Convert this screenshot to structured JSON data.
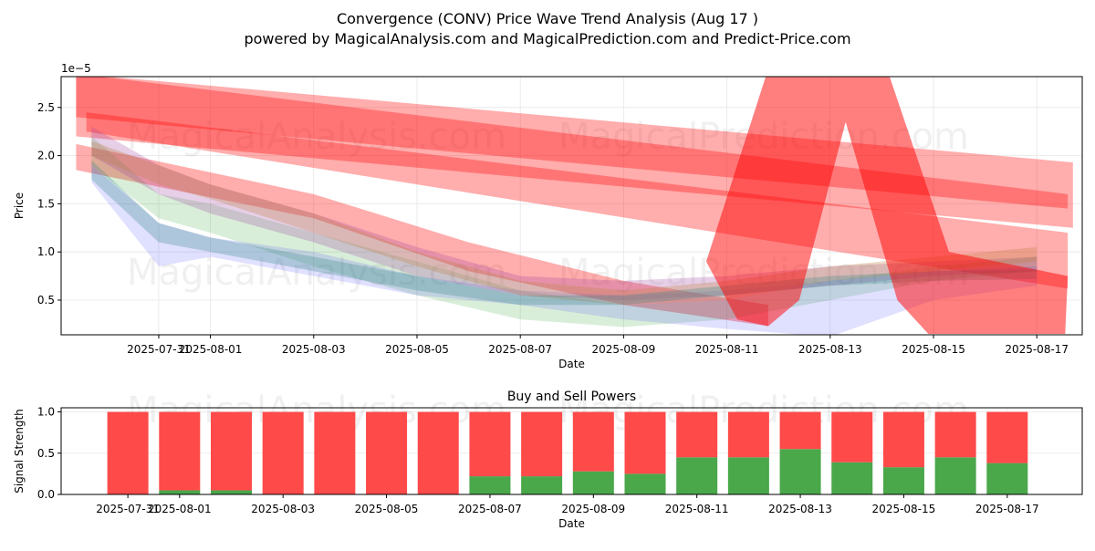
{
  "title_line1": "Convergence (CONV) Price Wave Trend Analysis (Aug 17 )",
  "title_line2": "powered by MagicalAnalysis.com and MagicalPrediction.com and Predict-Price.com",
  "watermarks": [
    "MagicalAnalysis.com",
    "MagicalPrediction.com"
  ],
  "chart_data": [
    {
      "type": "area",
      "title": "",
      "xlabel": "Date",
      "ylabel": "Price",
      "y_offset_label": "1e−5",
      "x_origin_date": "2025-07-31",
      "xlim_days": [
        -1.89,
        17.88
      ],
      "ylim": [
        0.14,
        2.82
      ],
      "yticks": [
        0.5,
        1.0,
        1.5,
        2.0,
        2.5
      ],
      "ytick_labels": [
        "0.5",
        "1.0",
        "1.5",
        "2.0",
        "2.5"
      ],
      "xticks_days": [
        0,
        1,
        3,
        5,
        7,
        9,
        11,
        13,
        15,
        17
      ],
      "xtick_labels": [
        "2025-07-31",
        "2025-08-01",
        "2025-08-03",
        "2025-08-05",
        "2025-08-07",
        "2025-08-09",
        "2025-08-11",
        "2025-08-13",
        "2025-08-15",
        "2025-08-17"
      ],
      "grid": true,
      "bands": [
        {
          "name": "red-band-1",
          "color": "#ff0000",
          "alpha": 0.32,
          "x": [
            -1.6,
            17.7
          ],
          "hi": [
            2.85,
            1.93
          ],
          "lo": [
            2.2,
            1.25
          ]
        },
        {
          "name": "red-band-2",
          "color": "#ff0000",
          "alpha": 0.32,
          "x": [
            -1.4,
            17.6
          ],
          "hi": [
            2.45,
            1.2
          ],
          "lo": [
            2.25,
            0.62
          ]
        },
        {
          "name": "red-band-3",
          "color": "#ff0000",
          "alpha": 0.32,
          "x": [
            -1.6,
            3,
            6,
            9,
            11.8
          ],
          "hi": [
            2.12,
            1.6,
            1.1,
            0.7,
            0.45
          ],
          "lo": [
            1.85,
            1.35,
            0.8,
            0.45,
            0.23
          ]
        },
        {
          "name": "red-band-4",
          "color": "#ff0000",
          "alpha": 0.32,
          "x": [
            -1.6,
            17.6
          ],
          "hi": [
            2.85,
            1.6
          ],
          "lo": [
            2.4,
            1.45
          ]
        },
        {
          "name": "green-band",
          "color": "#2ca02c",
          "alpha": 0.18,
          "x": [
            -1.3,
            0,
            1,
            3,
            5,
            7,
            9,
            11,
            13,
            15,
            17
          ],
          "hi": [
            2.2,
            1.6,
            1.5,
            1.2,
            0.9,
            0.6,
            0.45,
            0.5,
            0.7,
            0.85,
            0.95
          ],
          "lo": [
            1.9,
            1.35,
            1.2,
            0.85,
            0.55,
            0.3,
            0.22,
            0.3,
            0.5,
            0.7,
            0.8
          ]
        },
        {
          "name": "blue-band",
          "color": "#4040ff",
          "alpha": 0.16,
          "x": [
            -1.3,
            0,
            1,
            3,
            5,
            7,
            9,
            11,
            13,
            15,
            17
          ],
          "hi": [
            1.9,
            1.3,
            1.15,
            1.0,
            0.75,
            0.6,
            0.55,
            0.6,
            0.7,
            0.8,
            0.85
          ],
          "lo": [
            1.72,
            0.85,
            0.95,
            0.75,
            0.55,
            0.45,
            0.3,
            0.2,
            0.12,
            0.5,
            0.65
          ]
        },
        {
          "name": "purple-band",
          "color": "#9a3fa0",
          "alpha": 0.25,
          "x": [
            -1.3,
            0,
            1,
            3,
            5,
            7,
            9,
            11,
            13,
            15,
            17
          ],
          "hi": [
            2.3,
            1.9,
            1.7,
            1.4,
            1.05,
            0.75,
            0.7,
            0.75,
            0.85,
            0.9,
            0.95
          ],
          "lo": [
            2.0,
            1.6,
            1.4,
            1.1,
            0.75,
            0.55,
            0.5,
            0.55,
            0.65,
            0.75,
            0.8
          ]
        },
        {
          "name": "orange-band",
          "color": "#c08040",
          "alpha": 0.3,
          "x": [
            -1.3,
            0,
            1,
            3,
            5,
            7,
            9,
            11,
            13,
            15,
            17
          ],
          "hi": [
            2.15,
            1.9,
            1.7,
            1.4,
            1.0,
            0.7,
            0.6,
            0.7,
            0.85,
            0.95,
            1.05
          ],
          "lo": [
            2.0,
            1.7,
            1.55,
            1.2,
            0.85,
            0.55,
            0.45,
            0.5,
            0.7,
            0.8,
            0.9
          ]
        },
        {
          "name": "teal-band",
          "color": "#3a8a8a",
          "alpha": 0.3,
          "x": [
            -1.3,
            0,
            1,
            3,
            5,
            7,
            9,
            11,
            13,
            15,
            17
          ],
          "hi": [
            1.95,
            1.3,
            1.15,
            0.95,
            0.75,
            0.55,
            0.55,
            0.65,
            0.75,
            0.8,
            0.82
          ],
          "lo": [
            1.75,
            1.1,
            1.0,
            0.8,
            0.6,
            0.45,
            0.45,
            0.55,
            0.65,
            0.7,
            0.72
          ]
        }
      ],
      "spike": {
        "name": "red-spike",
        "color": "#ff0000",
        "alpha": 0.5,
        "points": [
          [
            10.6,
            0.9
          ],
          [
            11.8,
            2.9
          ],
          [
            14.1,
            2.9
          ],
          [
            15.3,
            1.0
          ],
          [
            17.6,
            0.75
          ],
          [
            17.55,
            0.15
          ],
          [
            14.9,
            0.15
          ],
          [
            14.3,
            0.5
          ],
          [
            13.3,
            2.35
          ],
          [
            12.4,
            0.5
          ],
          [
            11.8,
            0.23
          ],
          [
            11.2,
            0.3
          ]
        ]
      }
    },
    {
      "type": "bar",
      "title": "Buy and Sell Powers",
      "xlabel": "Date",
      "ylabel": "Signal Strength",
      "ylim": [
        0,
        1.05
      ],
      "xlim_days": [
        -1.29,
        18.45
      ],
      "yticks": [
        0,
        0.5,
        1.0
      ],
      "ytick_labels": [
        "0.0",
        "0.5",
        "1.0"
      ],
      "xticks_days": [
        0,
        1,
        3,
        5,
        7,
        9,
        11,
        13,
        15,
        17
      ],
      "xtick_labels": [
        "2025-07-31",
        "2025-08-01",
        "2025-08-03",
        "2025-08-05",
        "2025-08-07",
        "2025-08-09",
        "2025-08-11",
        "2025-08-13",
        "2025-08-15",
        "2025-08-17"
      ],
      "categories_days": [
        0,
        1,
        2,
        3,
        4,
        5,
        6,
        7,
        8,
        9,
        10,
        11,
        12,
        13,
        14,
        15,
        16,
        17
      ],
      "series": [
        {
          "name": "Buy",
          "color": "#4aa74a",
          "values": [
            0,
            0.05,
            0.05,
            0,
            0,
            0,
            0,
            0.22,
            0.22,
            0.28,
            0.25,
            0.45,
            0.45,
            0.55,
            0.39,
            0.33,
            0.45,
            0.38
          ]
        },
        {
          "name": "Sell",
          "color": "#ff4a4a",
          "values": [
            1,
            0.95,
            0.95,
            1,
            1,
            1,
            1,
            0.78,
            0.78,
            0.72,
            0.75,
            0.55,
            0.55,
            0.45,
            0.61,
            0.67,
            0.55,
            0.62
          ]
        }
      ],
      "grid": true
    }
  ]
}
